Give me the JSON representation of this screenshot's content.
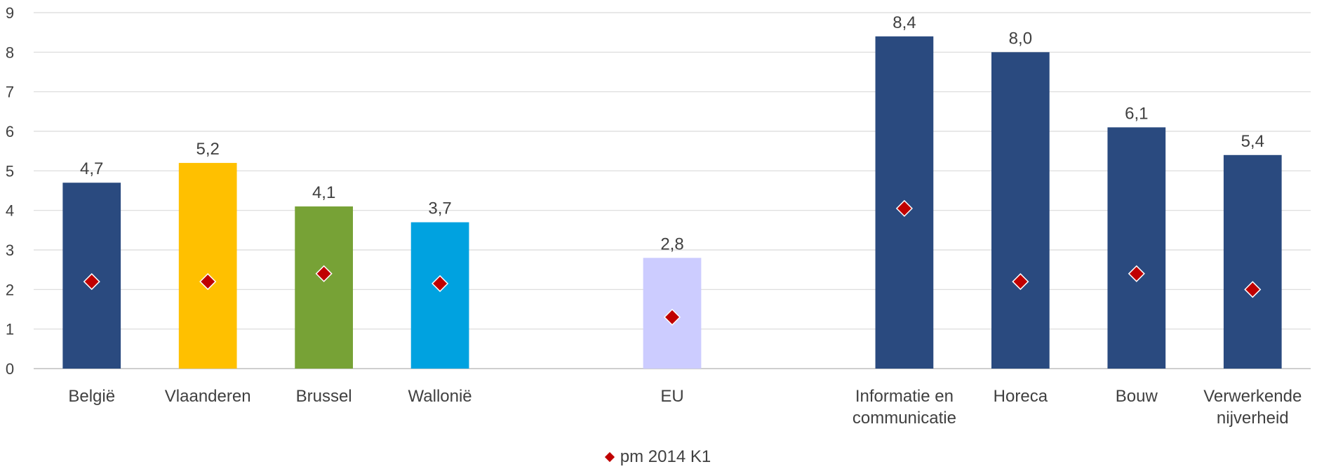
{
  "chart_data": {
    "type": "bar",
    "categories": [
      {
        "label": [
          "België"
        ],
        "value": 4.7,
        "value_label": "4,7",
        "marker": 2.2,
        "color": "#2a4a7f"
      },
      {
        "label": [
          "Vlaanderen"
        ],
        "value": 5.2,
        "value_label": "5,2",
        "marker": 2.2,
        "color": "#ffc000"
      },
      {
        "label": [
          "Brussel"
        ],
        "value": 4.1,
        "value_label": "4,1",
        "marker": 2.4,
        "color": "#77a236"
      },
      {
        "label": [
          "Wallonië"
        ],
        "value": 3.7,
        "value_label": "3,7",
        "marker": 2.15,
        "color": "#00a2e0"
      },
      {
        "label": [
          ""
        ],
        "value": null,
        "value_label": "",
        "marker": null,
        "color": null
      },
      {
        "label": [
          "EU"
        ],
        "value": 2.8,
        "value_label": "2,8",
        "marker": 1.3,
        "color": "#ccccff"
      },
      {
        "label": [
          ""
        ],
        "value": null,
        "value_label": "",
        "marker": null,
        "color": null
      },
      {
        "label": [
          "Informatie en",
          "communicatie"
        ],
        "value": 8.4,
        "value_label": "8,4",
        "marker": 4.05,
        "color": "#2a4a7f"
      },
      {
        "label": [
          "Horeca"
        ],
        "value": 8.0,
        "value_label": "8,0",
        "marker": 2.2,
        "color": "#2a4a7f"
      },
      {
        "label": [
          "Bouw"
        ],
        "value": 6.1,
        "value_label": "6,1",
        "marker": 2.4,
        "color": "#2a4a7f"
      },
      {
        "label": [
          "Verwerkende",
          "nijverheid"
        ],
        "value": 5.4,
        "value_label": "5,4",
        "marker": 2.0,
        "color": "#2a4a7f"
      }
    ],
    "ylim": [
      0,
      9
    ],
    "yticks": [
      "0",
      "1",
      "2",
      "3",
      "4",
      "5",
      "6",
      "7",
      "8",
      "9"
    ],
    "grid": true,
    "marker_series": {
      "name": "pm 2014 K1",
      "color": "#c00000"
    },
    "legend_position": "bottom-center"
  }
}
